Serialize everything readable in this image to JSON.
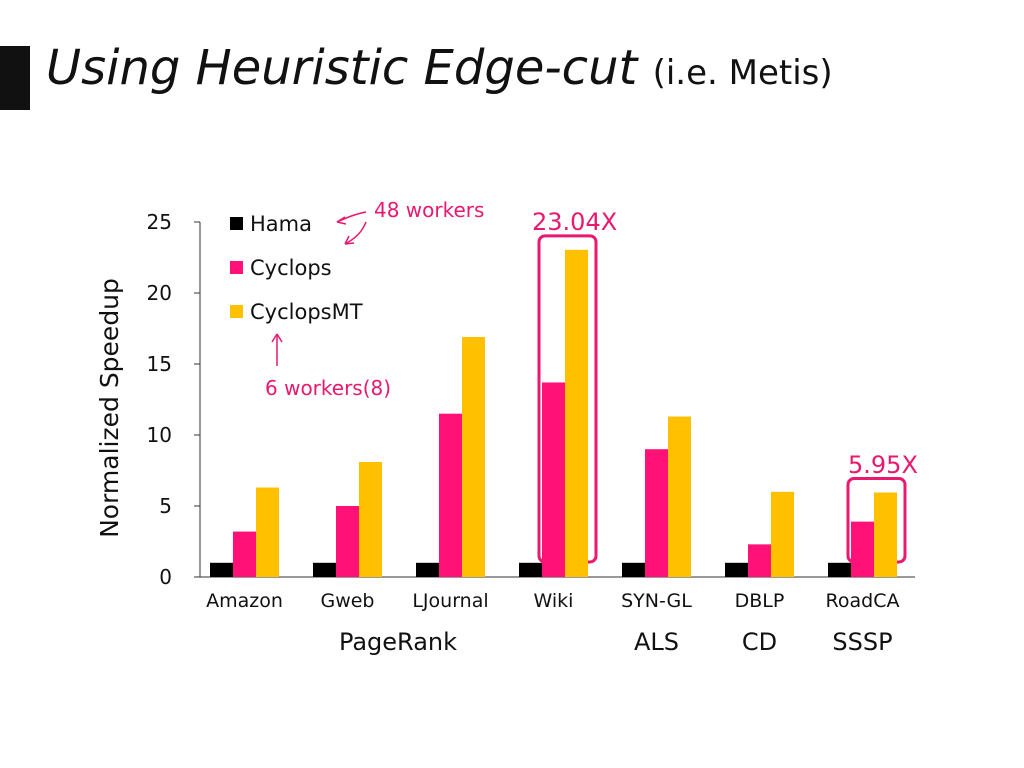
{
  "slide": {
    "title": "Using Heuristic Edge-cut",
    "title_suffix": "(i.e. Metis)"
  },
  "chart_data": {
    "type": "bar",
    "ylabel": "Normalized Speedup",
    "ylim": [
      0,
      25
    ],
    "yticks": [
      0,
      5,
      10,
      15,
      20,
      25
    ],
    "categories": [
      "Amazon",
      "Gweb",
      "LJournal",
      "Wiki",
      "SYN-GL",
      "DBLP",
      "RoadCA"
    ],
    "groups": [
      {
        "label": "PageRank"
      },
      {
        "label": "ALS"
      },
      {
        "label": "CD"
      },
      {
        "label": "SSSP"
      }
    ],
    "series": [
      {
        "name": "Hama",
        "color": "#000000",
        "values": [
          1,
          1,
          1,
          1,
          1,
          1,
          1
        ]
      },
      {
        "name": "Cyclops",
        "color": "#ff1177",
        "values": [
          3.2,
          5.0,
          11.5,
          13.7,
          9.0,
          2.3,
          3.9
        ]
      },
      {
        "name": "CyclopsMT",
        "color": "#ffc000",
        "values": [
          6.3,
          8.1,
          16.9,
          23.04,
          11.3,
          6.0,
          5.95
        ]
      }
    ],
    "legend_position": "top-left",
    "annotations": [
      {
        "text": "48 workers"
      },
      {
        "text": "6 workers(8)"
      },
      {
        "text": "23.04X"
      },
      {
        "text": "5.95X"
      }
    ],
    "accent_color": "#e8196e"
  }
}
